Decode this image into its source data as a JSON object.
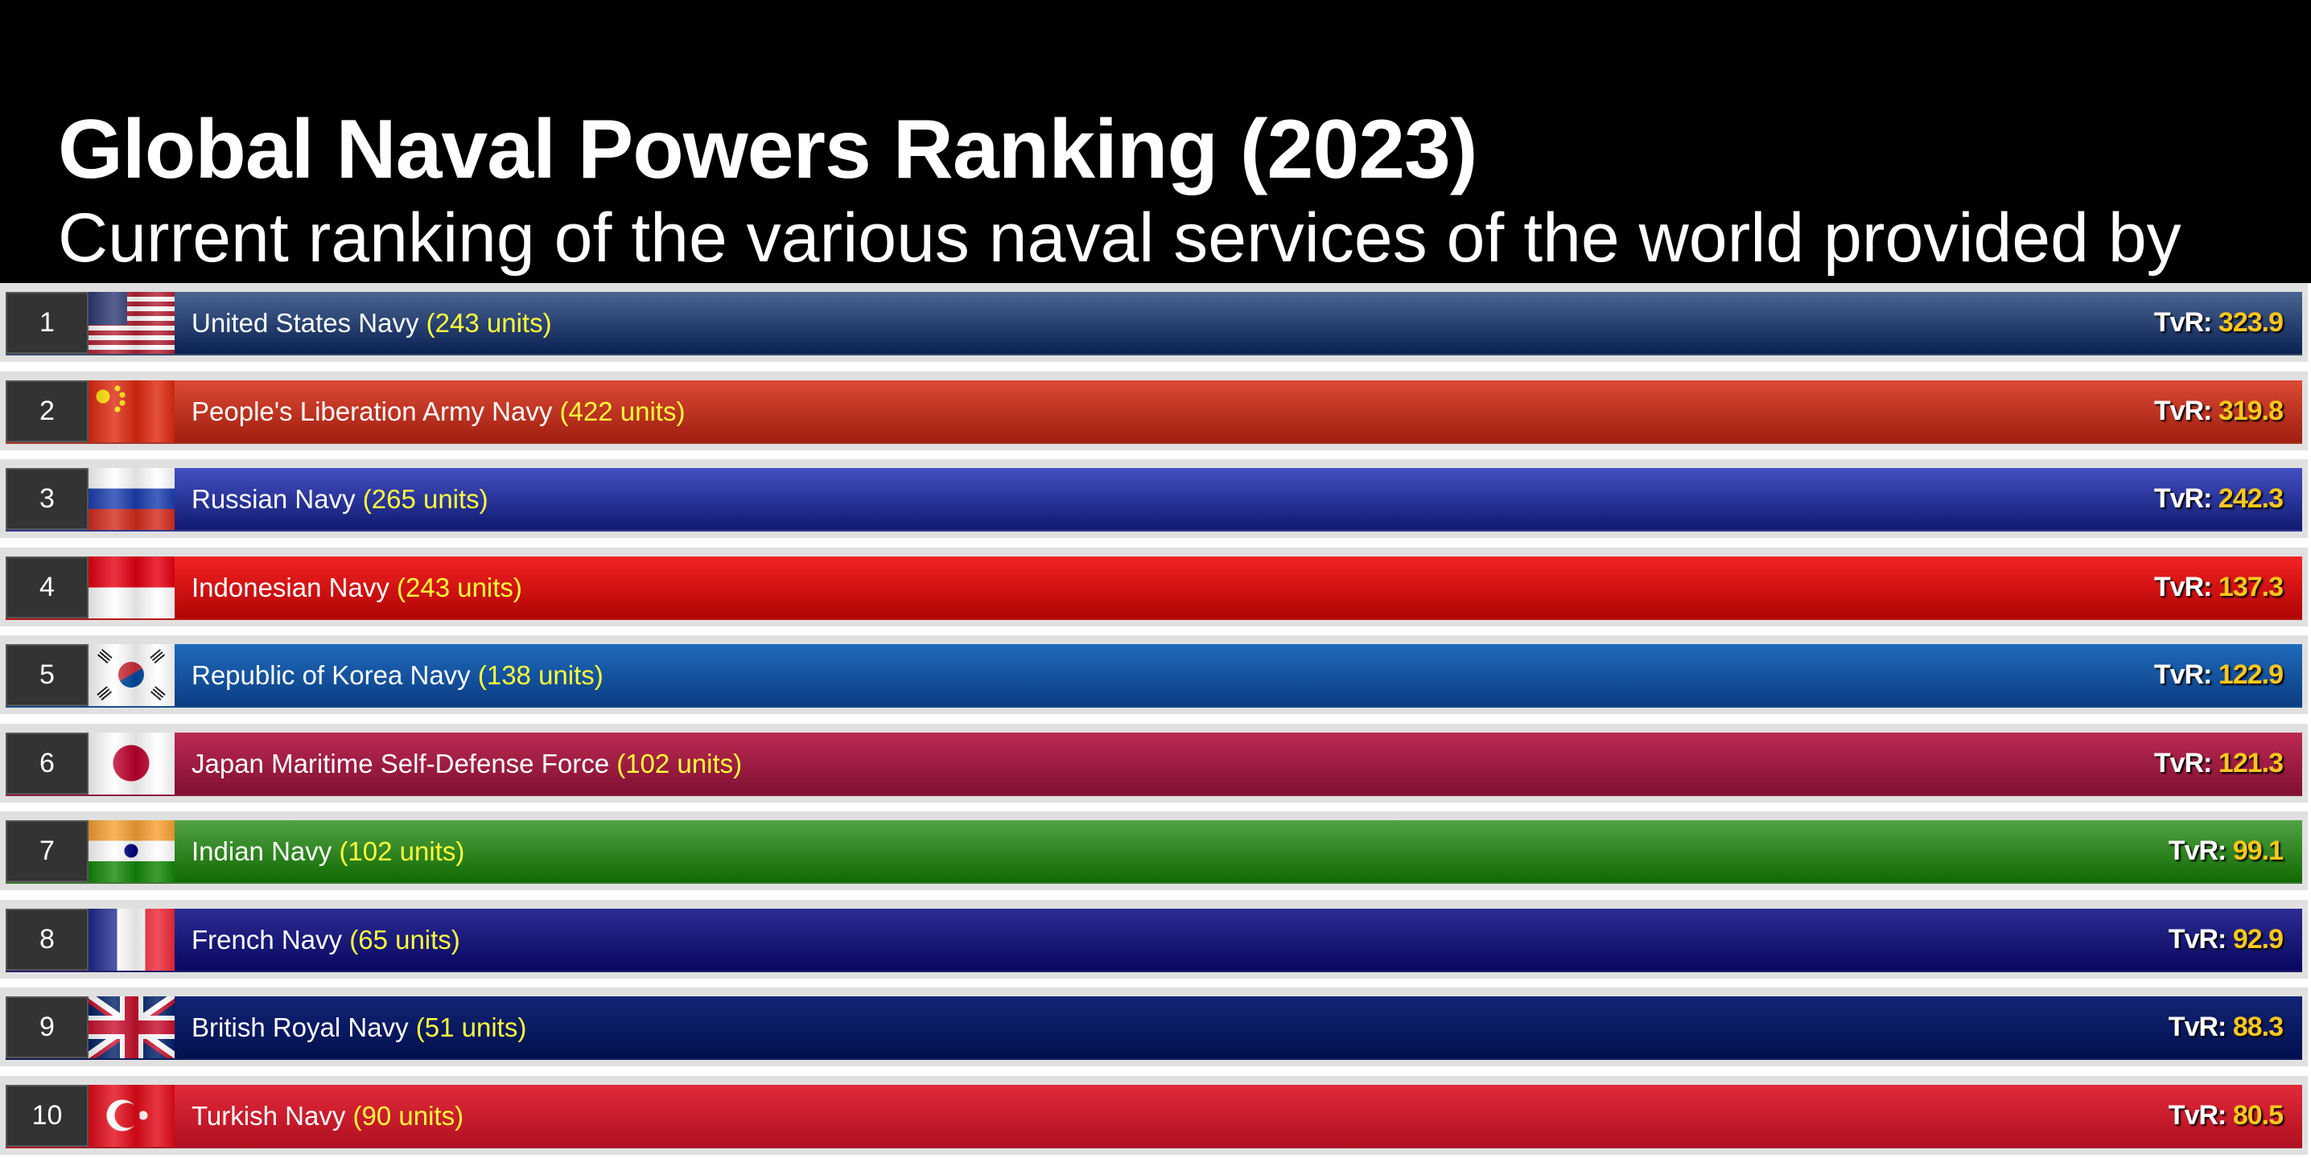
{
  "header": {
    "title": "Global Naval Powers Ranking (2023)",
    "subtitle": "Current ranking of the various naval services of the world provided by"
  },
  "score_label": "TvR:",
  "rows": [
    {
      "rank": "1",
      "name": "United States Navy",
      "units": "(243 units)",
      "tvr": "323.9",
      "flag": "us-flag-icon",
      "colors": [
        "#4a6592",
        "#0a2152"
      ]
    },
    {
      "rank": "2",
      "name": "People's Liberation Army Navy",
      "units": "(422 units)",
      "tvr": "319.8",
      "flag": "china-flag-icon",
      "colors": [
        "#dc4a34",
        "#a01e10"
      ]
    },
    {
      "rank": "3",
      "name": "Russian Navy",
      "units": "(265 units)",
      "tvr": "242.3",
      "flag": "russia-flag-icon",
      "colors": [
        "#4450c4",
        "#101a70"
      ]
    },
    {
      "rank": "4",
      "name": "Indonesian Navy",
      "units": "(243 units)",
      "tvr": "137.3",
      "flag": "indonesia-flag-icon",
      "colors": [
        "#f42222",
        "#b00404"
      ]
    },
    {
      "rank": "5",
      "name": "Republic of Korea Navy",
      "units": "(138 units)",
      "tvr": "122.9",
      "flag": "korea-flag-icon",
      "colors": [
        "#1f6bbc",
        "#0b3c82"
      ]
    },
    {
      "rank": "6",
      "name": "Japan Maritime Self-Defense Force",
      "units": "(102 units)",
      "tvr": "121.3",
      "flag": "japan-flag-icon",
      "colors": [
        "#bc2a52",
        "#801032"
      ]
    },
    {
      "rank": "7",
      "name": "Indian Navy",
      "units": "(102 units)",
      "tvr": "99.1",
      "flag": "india-flag-icon",
      "colors": [
        "#52a244",
        "#116a02"
      ]
    },
    {
      "rank": "8",
      "name": "French Navy",
      "units": "(65 units)",
      "tvr": "92.9",
      "flag": "france-flag-icon",
      "colors": [
        "#2c2c94",
        "#080860"
      ]
    },
    {
      "rank": "9",
      "name": "British Royal Navy",
      "units": "(51 units)",
      "tvr": "88.3",
      "flag": "uk-flag-icon",
      "colors": [
        "#132476",
        "#00104e"
      ]
    },
    {
      "rank": "10",
      "name": "Turkish Navy",
      "units": "(90 units)",
      "tvr": "80.5",
      "flag": "turkey-flag-icon",
      "colors": [
        "#e22a3a",
        "#b01020"
      ]
    }
  ]
}
